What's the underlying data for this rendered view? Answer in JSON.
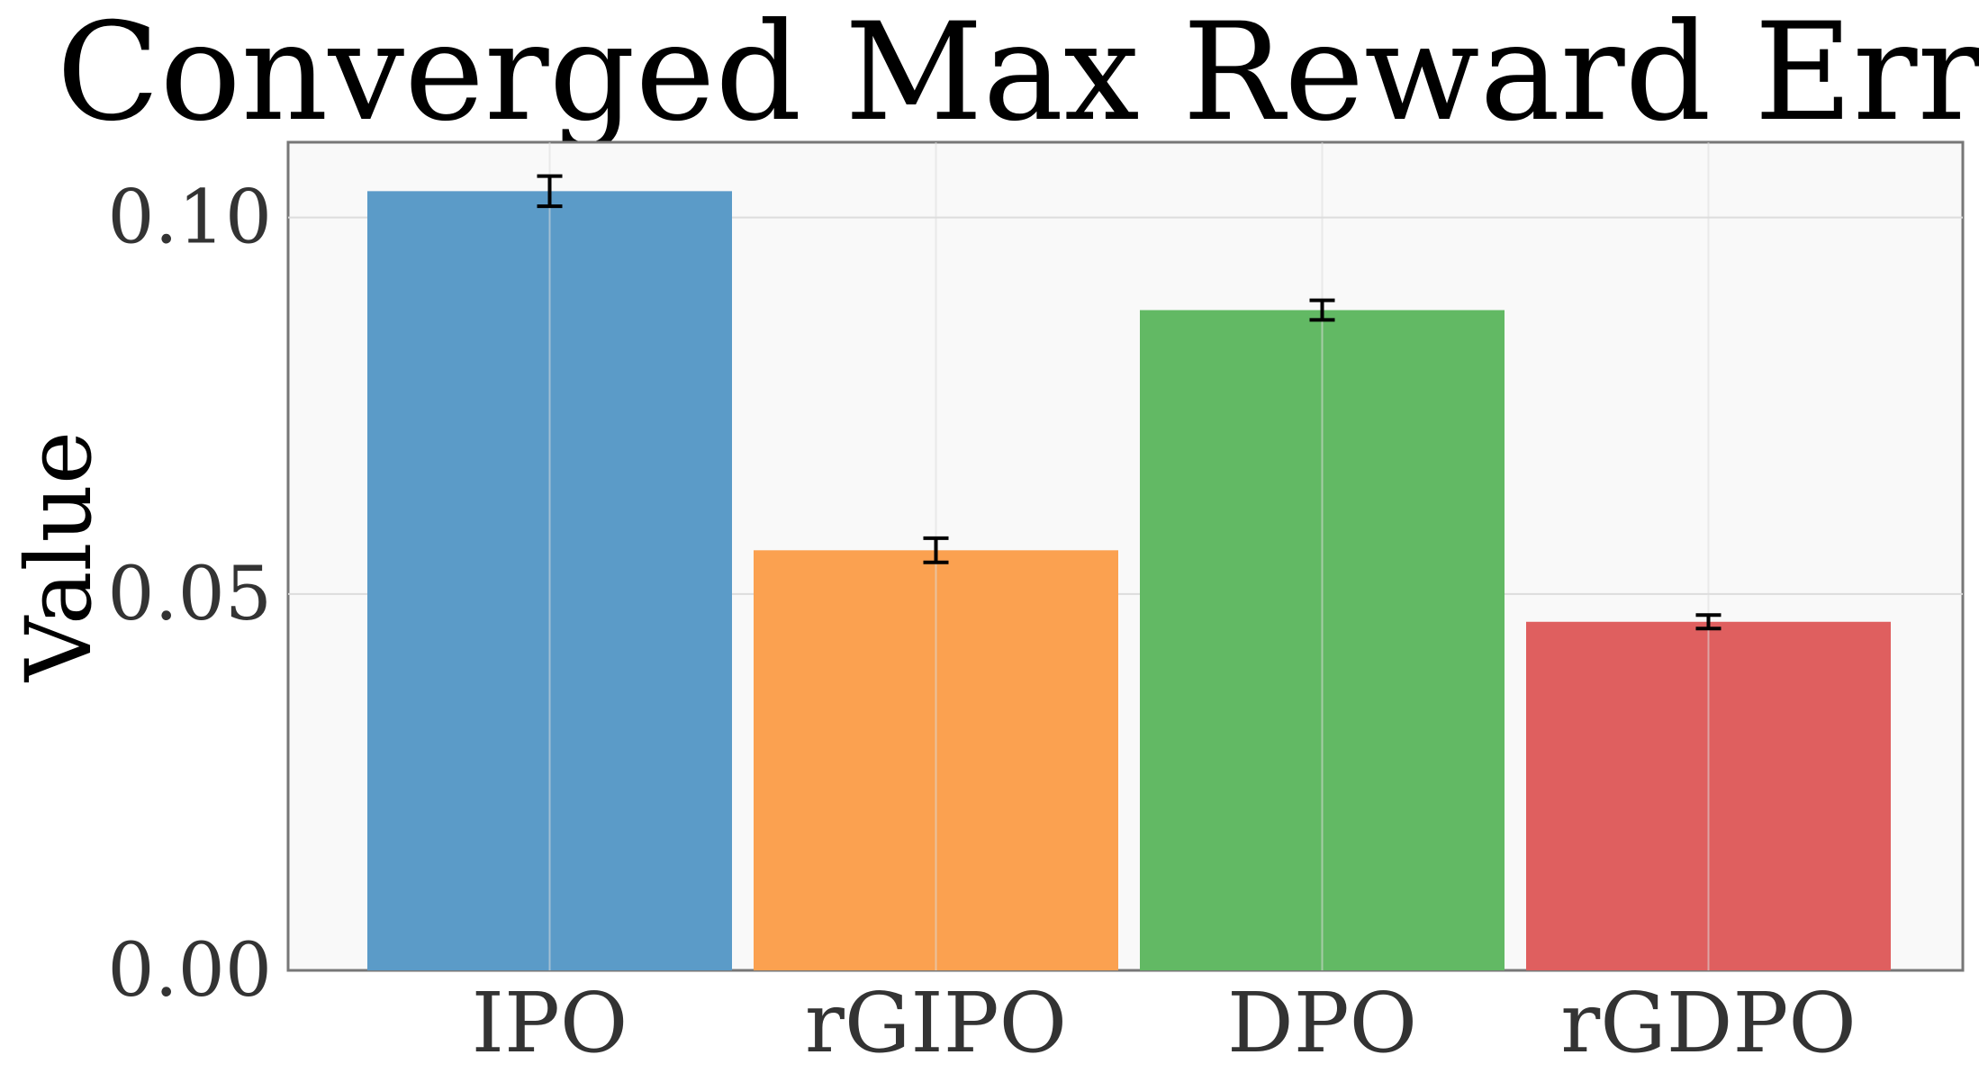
{
  "chart_data": {
    "type": "bar",
    "title": "Converged Max Reward Error",
    "xlabel": "",
    "ylabel": "Value",
    "categories": [
      "IPO",
      "rGIPO",
      "DPO",
      "rGDPO"
    ],
    "values": [
      0.1035,
      0.0558,
      0.0877,
      0.0463
    ],
    "errors": [
      0.002,
      0.0016,
      0.0013,
      0.0009
    ],
    "colors": [
      "#5b9bc8",
      "#fba150",
      "#62b964",
      "#df5f5f"
    ],
    "ylim": [
      0,
      0.11
    ],
    "yticks": [
      0.0,
      0.05,
      0.1
    ],
    "ytick_labels": [
      "0.00",
      "0.05",
      "0.10"
    ],
    "grid": true
  }
}
